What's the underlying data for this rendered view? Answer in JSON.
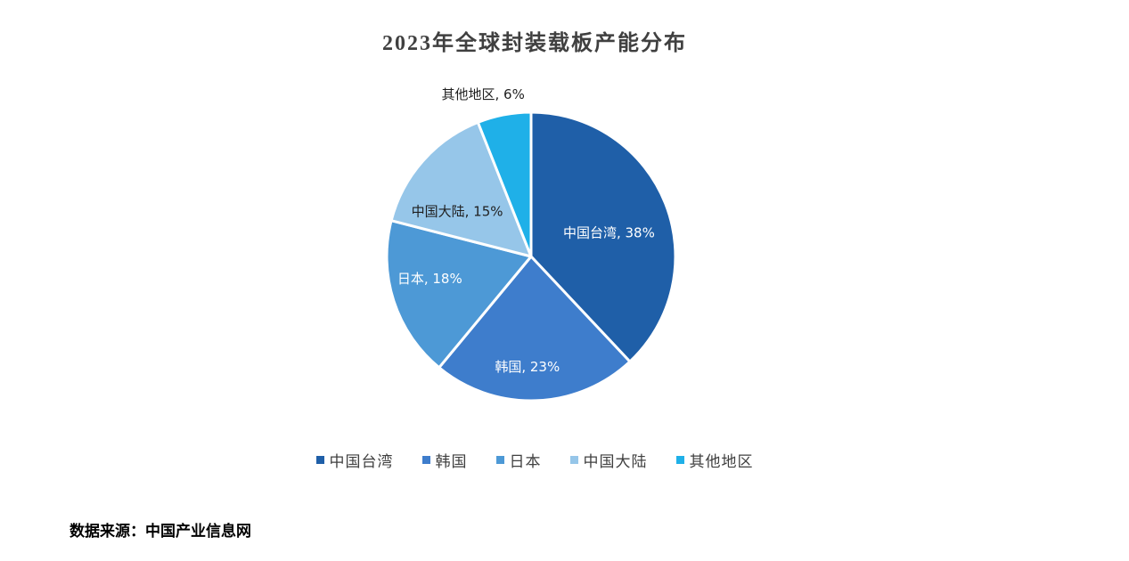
{
  "source_note": "数据来源：中国产业信息网",
  "chart_data": {
    "type": "pie",
    "title": "2023年全球封装载板产能分布",
    "start_angle_deg": 0,
    "direction": "clockwise",
    "legend_position": "bottom",
    "slices": [
      {
        "label": "中国台湾",
        "value": 38,
        "color": "#1F5FA8",
        "data_label": "中国台湾, 38%",
        "label_color": "#FFFFFF",
        "label_r": 0.58,
        "label_offset": [
          0,
          8
        ],
        "label_outside": false
      },
      {
        "label": "韩国",
        "value": 23,
        "color": "#3E7DCC",
        "data_label": "韩国, 23%",
        "label_color": "#FFFFFF",
        "label_r": 0.74,
        "label_offset": [
          -8,
          4
        ],
        "label_outside": false
      },
      {
        "label": "日本",
        "value": 18,
        "color": "#4D99D6",
        "data_label": "日本, 18%",
        "label_color": "#FFFFFF",
        "label_r": 0.66,
        "label_offset": [
          -12,
          -8
        ],
        "label_outside": false
      },
      {
        "label": "中国大陆",
        "value": 15,
        "color": "#96C6E9",
        "data_label": "中国大陆, 15%",
        "label_color": "#1F1F1F",
        "label_r": 0.6,
        "label_offset": [
          -10,
          14
        ],
        "label_outside": false
      },
      {
        "label": "其他地区",
        "value": 6,
        "color": "#1FB0E8",
        "data_label": "其他地区, 6%",
        "label_color": "#1F1F1F",
        "label_r": 1.18,
        "label_offset": [
          -18,
          6
        ],
        "label_outside": true
      }
    ],
    "legend": [
      "中国台湾",
      "韩国",
      "日本",
      "中国大陆",
      "其他地区"
    ]
  }
}
